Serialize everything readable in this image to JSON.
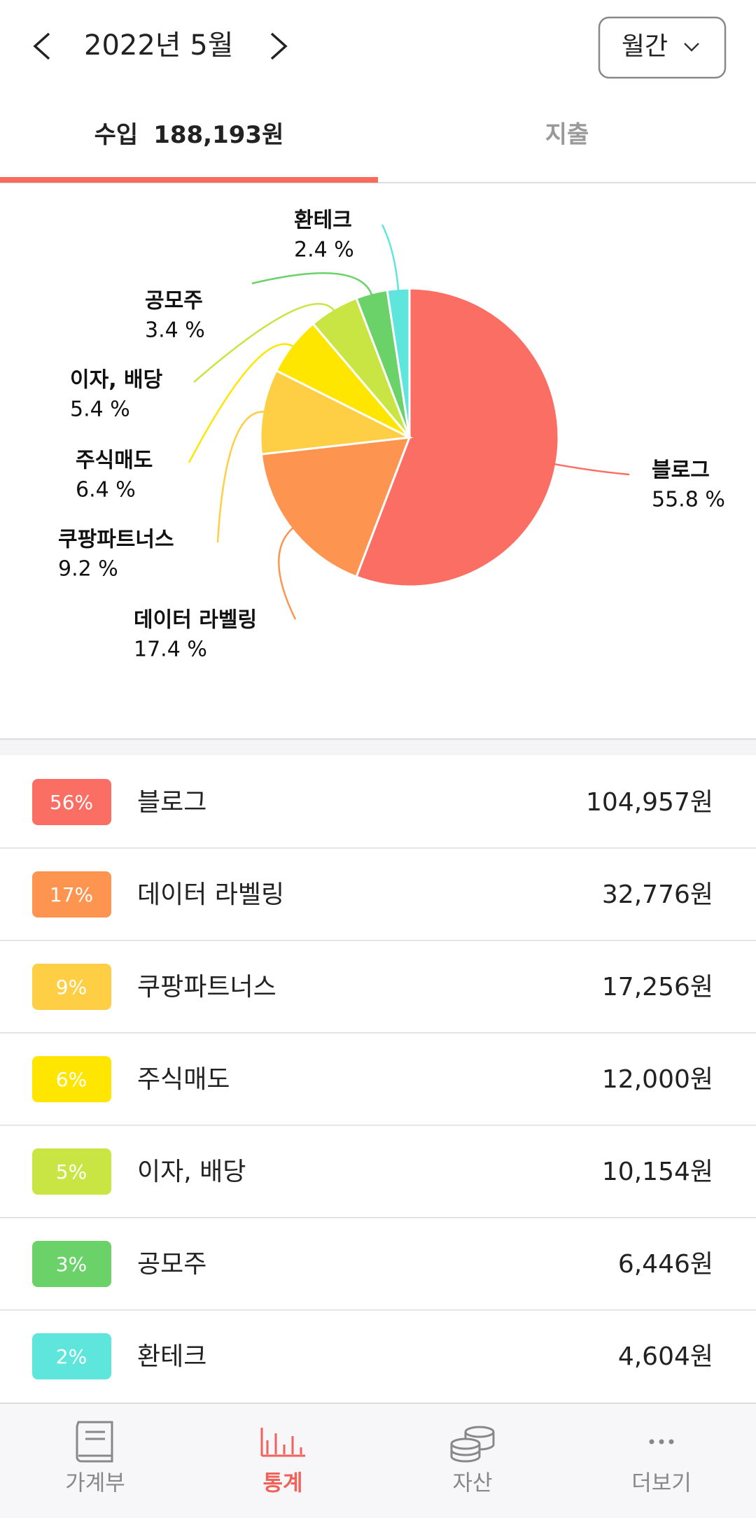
{
  "header": {
    "month": "2022년 5월",
    "period": "월간"
  },
  "tabs": {
    "income_label": "수입",
    "income_total": "188,193원",
    "expense_label": "지출"
  },
  "chart_data": {
    "type": "pie",
    "categories": [
      "블로그",
      "데이터 라벨링",
      "쿠팡파트너스",
      "주식매도",
      "이자, 배당",
      "공모주",
      "환테크"
    ],
    "values": [
      55.8,
      17.4,
      9.2,
      6.4,
      5.4,
      3.4,
      2.4
    ],
    "value_labels": [
      "55.8 %",
      "17.4 %",
      "9.2 %",
      "6.4 %",
      "5.4 %",
      "3.4 %",
      "2.4 %"
    ],
    "colors": [
      "#fb6e63",
      "#fd9550",
      "#fecf44",
      "#ffe600",
      "#c8e544",
      "#6bd26a",
      "#5fe6dc"
    ]
  },
  "list": [
    {
      "percent": "56%",
      "name": "블로그",
      "amount": "104,957원"
    },
    {
      "percent": "17%",
      "name": "데이터 라벨링",
      "amount": "32,776원"
    },
    {
      "percent": "9%",
      "name": "쿠팡파트너스",
      "amount": "17,256원"
    },
    {
      "percent": "6%",
      "name": "주식매도",
      "amount": "12,000원"
    },
    {
      "percent": "5%",
      "name": "이자, 배당",
      "amount": "10,154원"
    },
    {
      "percent": "3%",
      "name": "공모주",
      "amount": "6,446원"
    },
    {
      "percent": "2%",
      "name": "환테크",
      "amount": "4,604원"
    }
  ],
  "nav": [
    "가계부",
    "통계",
    "자산",
    "더보기"
  ]
}
